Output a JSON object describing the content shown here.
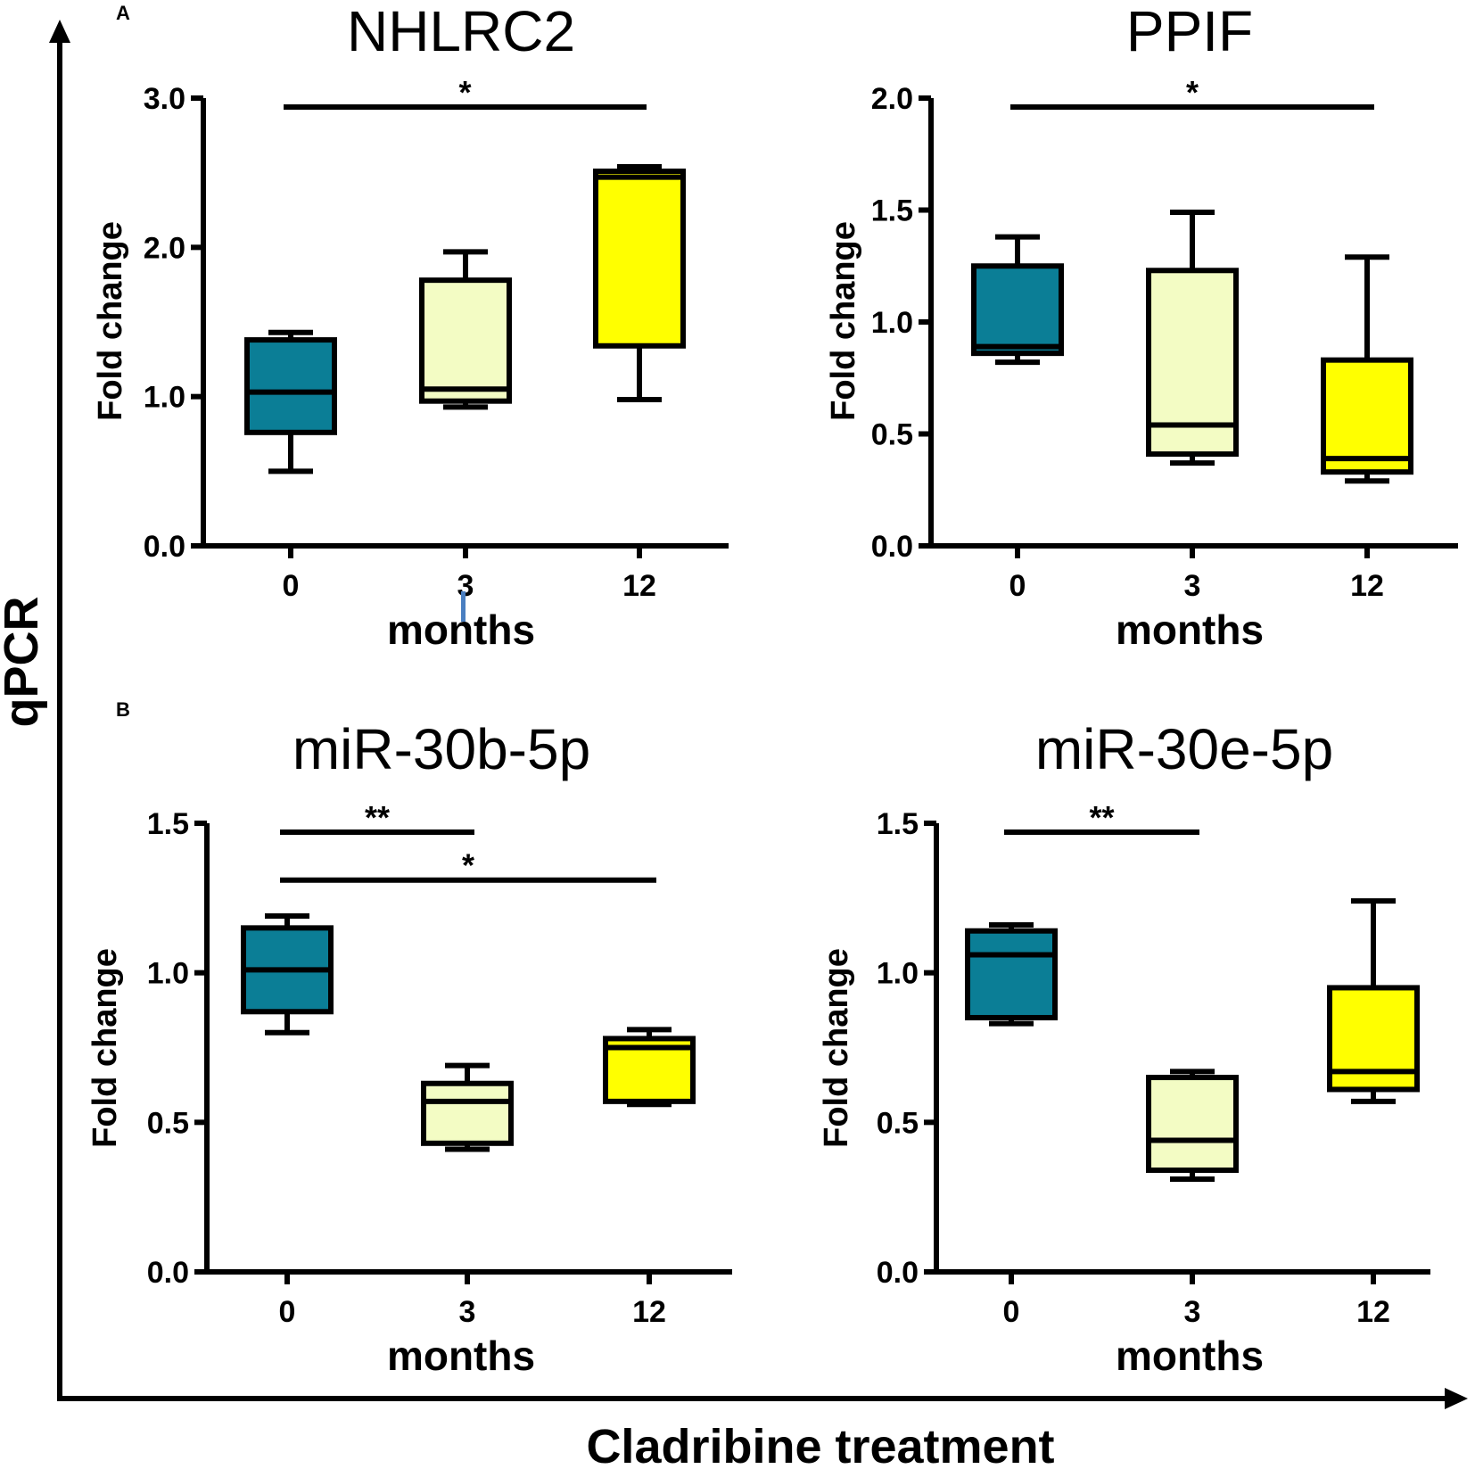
{
  "figure": {
    "y_axis_label": "qPCR",
    "x_axis_label": "Cladribine treatment",
    "colors": {
      "month0": "#0b7e96",
      "month3": "#f3fcc4",
      "month12": "#ffff00",
      "stroke": "#000000"
    }
  },
  "chart_data": [
    {
      "type": "box",
      "panel": "A",
      "title": "NHLRC2",
      "xlabel": "months",
      "ylabel": "Fold change",
      "categories": [
        "0",
        "3",
        "12"
      ],
      "ylim": [
        0,
        3.0
      ],
      "yticks": [
        0.0,
        1.0,
        2.0,
        3.0
      ],
      "ytick_labels": [
        "0.0",
        "1.0",
        "2.0",
        "3.0"
      ],
      "boxes": [
        {
          "category": "0",
          "min": 0.5,
          "q1": 0.76,
          "median": 1.03,
          "q3": 1.38,
          "max": 1.43
        },
        {
          "category": "3",
          "min": 0.93,
          "q1": 0.97,
          "median": 1.05,
          "q3": 1.78,
          "max": 1.97
        },
        {
          "category": "12",
          "min": 0.98,
          "q1": 1.34,
          "median": 2.47,
          "q3": 2.51,
          "max": 2.54
        }
      ],
      "significance": [
        {
          "from": "0",
          "to": "12",
          "label": "*",
          "y": 2.94
        }
      ]
    },
    {
      "type": "box",
      "panel": "A",
      "title": "PPIF",
      "xlabel": "months",
      "ylabel": "Fold change",
      "categories": [
        "0",
        "3",
        "12"
      ],
      "ylim": [
        0,
        2.0
      ],
      "yticks": [
        0.0,
        0.5,
        1.0,
        1.5,
        2.0
      ],
      "ytick_labels": [
        "0.0",
        "0.5",
        "1.0",
        "1.5",
        "2.0"
      ],
      "boxes": [
        {
          "category": "0",
          "min": 0.82,
          "q1": 0.86,
          "median": 0.89,
          "q3": 1.25,
          "max": 1.38
        },
        {
          "category": "3",
          "min": 0.37,
          "q1": 0.41,
          "median": 0.54,
          "q3": 1.23,
          "max": 1.49
        },
        {
          "category": "12",
          "min": 0.29,
          "q1": 0.33,
          "median": 0.39,
          "q3": 0.83,
          "max": 1.29
        }
      ],
      "significance": [
        {
          "from": "0",
          "to": "12",
          "label": "*",
          "y": 1.96
        }
      ]
    },
    {
      "type": "box",
      "panel": "B",
      "title": "miR-30b-5p",
      "xlabel": "months",
      "ylabel": "Fold change",
      "categories": [
        "0",
        "3",
        "12"
      ],
      "ylim": [
        0,
        1.5
      ],
      "yticks": [
        0.0,
        0.5,
        1.0,
        1.5
      ],
      "ytick_labels": [
        "0.0",
        "0.5",
        "1.0",
        "1.5"
      ],
      "boxes": [
        {
          "category": "0",
          "min": 0.8,
          "q1": 0.87,
          "median": 1.01,
          "q3": 1.15,
          "max": 1.19
        },
        {
          "category": "3",
          "min": 0.41,
          "q1": 0.43,
          "median": 0.57,
          "q3": 0.63,
          "max": 0.69
        },
        {
          "category": "12",
          "min": 0.56,
          "q1": 0.57,
          "median": 0.75,
          "q3": 0.78,
          "max": 0.81
        }
      ],
      "significance": [
        {
          "from": "0",
          "to": "3",
          "label": "**",
          "y": 1.47
        },
        {
          "from": "0",
          "to": "12",
          "label": "*",
          "y": 1.31
        }
      ]
    },
    {
      "type": "box",
      "panel": "B",
      "title": "miR-30e-5p",
      "xlabel": "months",
      "ylabel": "Fold change",
      "categories": [
        "0",
        "3",
        "12"
      ],
      "ylim": [
        0,
        1.5
      ],
      "yticks": [
        0.0,
        0.5,
        1.0,
        1.5
      ],
      "ytick_labels": [
        "0.0",
        "0.5",
        "1.0",
        "1.5"
      ],
      "boxes": [
        {
          "category": "0",
          "min": 0.83,
          "q1": 0.85,
          "median": 1.06,
          "q3": 1.14,
          "max": 1.16
        },
        {
          "category": "3",
          "min": 0.31,
          "q1": 0.34,
          "median": 0.44,
          "q3": 0.65,
          "max": 0.67
        },
        {
          "category": "12",
          "min": 0.57,
          "q1": 0.61,
          "median": 0.67,
          "q3": 0.95,
          "max": 1.24
        }
      ],
      "significance": [
        {
          "from": "0",
          "to": "3",
          "label": "**",
          "y": 1.47
        }
      ]
    }
  ]
}
